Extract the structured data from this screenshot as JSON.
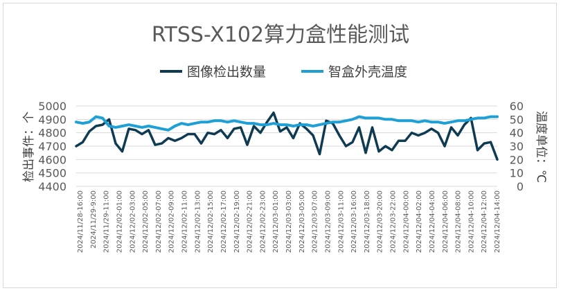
{
  "chart_data": {
    "type": "line",
    "title": "RTSS-X102算力盒性能测试",
    "ylabel_left": "检出事件：个",
    "ylabel_right": "温度单位：℃",
    "ylim_left": [
      4400,
      5000
    ],
    "ylim_right": [
      0,
      60
    ],
    "yticks_left": [
      "4400",
      "4500",
      "4600",
      "4700",
      "4800",
      "4900",
      "5000"
    ],
    "yticks_right": [
      "0",
      "10",
      "20",
      "30",
      "40",
      "50",
      "60"
    ],
    "grid": true,
    "legend_position": "top",
    "x_tick_labels": [
      "2024/11/28-16:00",
      "2024/11/29-9:00",
      "2024/11/29-11:00",
      "2024/12/02-01:00",
      "2024/12/02-03:00",
      "2024/12/02-05:00",
      "2024/12/02-07:00",
      "2024/12/02-09:00",
      "2024/12/02-11:00",
      "2024/12/02-13:00",
      "2024/12/02-15:00",
      "2024/12/02-17:00",
      "2024/12/02-19:00",
      "2024/12/02-21:00",
      "2024/12/02-23:00",
      "2024/12/03-01:00",
      "2024/12/03-03:00",
      "2024/12/03-05:00",
      "2024/12/03-07:00",
      "2024/12/03-09:00",
      "2024/12/03-11:00",
      "2024/12/03-16:00",
      "2024/12/03-18:00",
      "2024/12/03-20:00",
      "2024/12/03-22:00",
      "2024/12/04-00:00",
      "2024/12/04-02:00",
      "2024/12/04-04:00",
      "2024/12/04-06:00",
      "2024/12/04-08:00",
      "2024/12/04-10:00",
      "2024/12/04-12:00",
      "2024/12/04-14:00"
    ],
    "series": [
      {
        "name": "图像检出数量",
        "axis": "left",
        "color": "#0e3a52",
        "values": [
          4700,
          4730,
          4810,
          4850,
          4860,
          4900,
          4720,
          4660,
          4830,
          4820,
          4790,
          4820,
          4710,
          4720,
          4760,
          4740,
          4760,
          4790,
          4790,
          4720,
          4800,
          4790,
          4820,
          4760,
          4830,
          4840,
          4710,
          4850,
          4800,
          4880,
          4950,
          4810,
          4840,
          4760,
          4870,
          4830,
          4780,
          4640,
          4890,
          4870,
          4780,
          4700,
          4730,
          4840,
          4650,
          4840,
          4660,
          4700,
          4670,
          4740,
          4740,
          4800,
          4780,
          4800,
          4830,
          4800,
          4700,
          4840,
          4780,
          4860,
          4910,
          4670,
          4720,
          4730,
          4600
        ]
      },
      {
        "name": "智盒外壳温度",
        "axis": "right",
        "color": "#1ea0d6",
        "values": [
          48,
          47,
          48,
          52,
          51,
          45,
          44,
          45,
          46,
          45,
          44,
          45,
          44,
          43,
          42,
          45,
          47,
          46,
          47,
          48,
          48,
          49,
          49,
          48,
          49,
          48,
          47,
          47,
          46,
          46,
          47,
          46,
          46,
          45,
          46,
          46,
          45,
          46,
          47,
          48,
          48,
          49,
          50,
          52,
          51,
          51,
          51,
          50,
          50,
          49,
          49,
          49,
          48,
          49,
          48,
          48,
          47,
          48,
          49,
          49,
          50,
          51,
          51,
          52,
          52
        ]
      }
    ]
  }
}
